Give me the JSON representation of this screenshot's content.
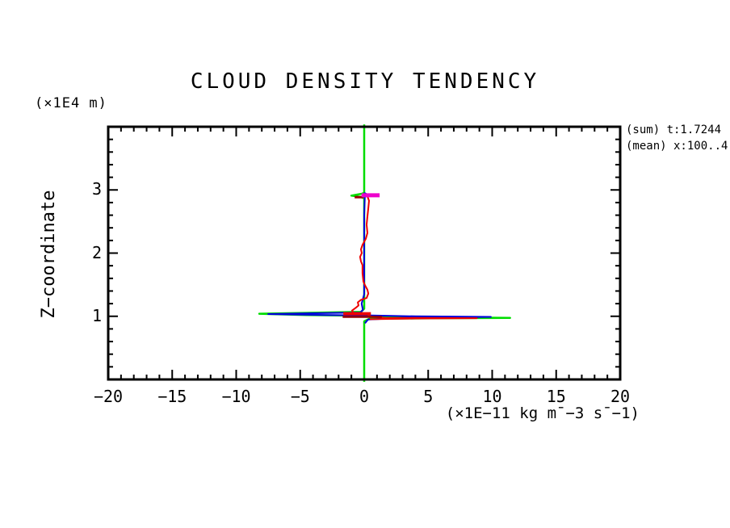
{
  "title": "CLOUD DENSITY TENDENCY",
  "left_axis_unit": "(×1E4 m)",
  "y_axis_label": "Z−coordinate",
  "x_axis_unit": "(×1E−11 kg m¯−3 s¯−1)",
  "legend": {
    "line1": "(sum) t:1.7244",
    "line2": "(mean) x:100..4"
  },
  "colors": {
    "axis": "#000000",
    "background": "#ffffff"
  },
  "chart_data": {
    "type": "line",
    "title": "CLOUD DENSITY TENDENCY",
    "xlabel": "(×1E−11 kg m¯−3 s¯−1)",
    "ylabel": "Z−coordinate (×1E4 m)",
    "xlim": [
      -20,
      20
    ],
    "ylim": [
      0,
      4
    ],
    "grid": false,
    "xticks_major": [
      -20,
      -15,
      -10,
      -5,
      0,
      5,
      10,
      15,
      20
    ],
    "xtick_labels": [
      "−20",
      "−15",
      "−10",
      "−5",
      "0",
      "5",
      "10",
      "15",
      "20"
    ],
    "yticks_major": [
      1,
      2,
      3
    ],
    "ytick_labels": [
      "1",
      "2",
      "3"
    ],
    "x_minor_step": 1,
    "y_minor_step": 0.2,
    "annotations": [
      "(sum) t:1.7244",
      "(mean) x:100..4"
    ],
    "series": [
      {
        "name": "green-profile",
        "color": "#00dd00",
        "width": 2.5,
        "points": [
          [
            0,
            4.02
          ],
          [
            0,
            2.96
          ],
          [
            -0.15,
            2.94
          ],
          [
            -1.0,
            2.91
          ],
          [
            -0.3,
            2.89
          ],
          [
            0,
            2.87
          ],
          [
            0,
            1.12
          ],
          [
            -0.25,
            1.07
          ],
          [
            -8.2,
            1.04
          ],
          [
            -4.5,
            1.02
          ],
          [
            -0.3,
            1.01
          ],
          [
            0.5,
            0.99
          ],
          [
            5.0,
            0.985
          ],
          [
            11.4,
            0.975
          ],
          [
            6.0,
            0.97
          ],
          [
            0.4,
            0.96
          ],
          [
            0,
            0.92
          ],
          [
            0,
            -0.02
          ]
        ]
      },
      {
        "name": "blue-profile",
        "color": "#0000dd",
        "width": 2,
        "points": [
          [
            0.05,
            2.95
          ],
          [
            0.3,
            2.92
          ],
          [
            0.05,
            2.89
          ],
          [
            0,
            2.6
          ],
          [
            0,
            1.35
          ],
          [
            -0.2,
            1.2
          ],
          [
            -0.1,
            1.1
          ],
          [
            -0.3,
            1.06
          ],
          [
            -7.5,
            1.035
          ],
          [
            -3.0,
            1.02
          ],
          [
            0.2,
            1.015
          ],
          [
            4.0,
            1.0
          ],
          [
            9.9,
            0.99
          ],
          [
            3.0,
            0.975
          ],
          [
            0.3,
            0.95
          ],
          [
            0.1,
            0.9
          ]
        ]
      },
      {
        "name": "red-profile",
        "color": "#ee0000",
        "width": 2,
        "points": [
          [
            0.25,
            2.9
          ],
          [
            0.38,
            2.83
          ],
          [
            0.32,
            2.71
          ],
          [
            0.25,
            2.58
          ],
          [
            0.19,
            2.45
          ],
          [
            0.25,
            2.32
          ],
          [
            0.13,
            2.23
          ],
          [
            -0.13,
            2.13
          ],
          [
            -0.25,
            2.06
          ],
          [
            -0.19,
            2.0
          ],
          [
            -0.32,
            1.94
          ],
          [
            -0.25,
            1.87
          ],
          [
            -0.13,
            1.81
          ],
          [
            -0.13,
            1.68
          ],
          [
            -0.06,
            1.55
          ],
          [
            0.06,
            1.49
          ],
          [
            0.25,
            1.42
          ],
          [
            0.32,
            1.36
          ],
          [
            0.19,
            1.29
          ],
          [
            -0.25,
            1.26
          ],
          [
            -0.5,
            1.22
          ],
          [
            -0.44,
            1.17
          ],
          [
            -0.69,
            1.13
          ],
          [
            -0.95,
            1.09
          ],
          [
            -0.82,
            1.05
          ],
          [
            -1.3,
            1.03
          ],
          [
            0.35,
            1.03
          ],
          [
            0.35,
            1.0
          ],
          [
            1.6,
            0.975
          ],
          [
            8.8,
            0.97
          ],
          [
            4.0,
            0.965
          ],
          [
            0.5,
            0.955
          ]
        ]
      },
      {
        "name": "red-thick-bar",
        "color": "#ee0000",
        "width": 4,
        "points": [
          [
            -1.5,
            1.04
          ],
          [
            0.4,
            1.04
          ]
        ]
      },
      {
        "name": "darkred-bar",
        "color": "#990000",
        "width": 2.5,
        "points": [
          [
            -1.6,
            0.99
          ],
          [
            1.3,
            0.99
          ]
        ]
      },
      {
        "name": "darkred-top-blob",
        "color": "#990000",
        "width": 3,
        "points": [
          [
            -0.65,
            2.885
          ],
          [
            -0.15,
            2.885
          ]
        ]
      },
      {
        "name": "magenta-top-bar",
        "color": "#ee00cc",
        "width": 5,
        "points": [
          [
            -0.05,
            2.915
          ],
          [
            1.05,
            2.915
          ]
        ]
      }
    ]
  }
}
